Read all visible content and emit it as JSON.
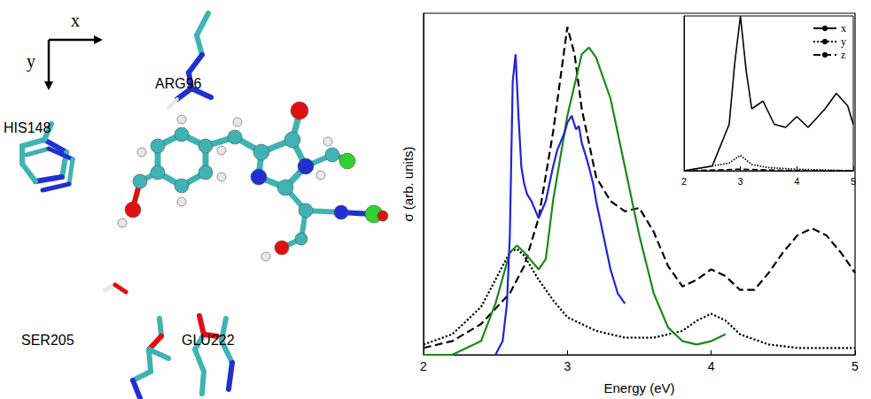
{
  "chart_data": [
    {
      "type": "line",
      "xlabel": "Energy (eV)",
      "ylabel": "σ (arb. units)",
      "xlim": [
        2,
        5
      ],
      "xticks": [
        2,
        3,
        4,
        5
      ],
      "ylim": [
        0,
        100
      ],
      "tick_labels": "x",
      "grid": false,
      "series": [
        {
          "color": "#000000",
          "line_style": "dashed",
          "x": [
            2,
            2.2,
            2.4,
            2.6,
            2.7,
            2.8,
            2.9,
            3.0,
            3.05,
            3.1,
            3.2,
            3.3,
            3.4,
            3.5,
            3.6,
            3.7,
            3.8,
            3.9,
            4.0,
            4.1,
            4.2,
            4.3,
            4.4,
            4.5,
            4.6,
            4.7,
            4.8,
            4.9,
            5.0
          ],
          "values": [
            2,
            4,
            9,
            18,
            26,
            40,
            65,
            96,
            88,
            72,
            52,
            45,
            42,
            43,
            36,
            26,
            20,
            22,
            25,
            23,
            19,
            19,
            24,
            30,
            35,
            37,
            35,
            30,
            24
          ]
        },
        {
          "color": "#000000",
          "line_style": "dotted",
          "x": [
            2,
            2.2,
            2.4,
            2.5,
            2.6,
            2.65,
            2.7,
            2.8,
            2.9,
            3.0,
            3.2,
            3.4,
            3.6,
            3.8,
            3.9,
            4.0,
            4.1,
            4.2,
            4.4,
            4.6,
            5.0
          ],
          "values": [
            3,
            6,
            14,
            22,
            30,
            31,
            29,
            22,
            16,
            11,
            7,
            5,
            5,
            7,
            10,
            12,
            10,
            6,
            3,
            2,
            2
          ]
        },
        {
          "color": "#1a8a1a",
          "line_style": "solid",
          "x": [
            2.0,
            2.2,
            2.4,
            2.5,
            2.6,
            2.65,
            2.7,
            2.8,
            2.85,
            2.9,
            3.0,
            3.1,
            3.15,
            3.2,
            3.3,
            3.4,
            3.5,
            3.6,
            3.7,
            3.8,
            3.9,
            4.0,
            4.1
          ],
          "values": [
            0,
            0,
            4,
            15,
            30,
            32,
            30,
            25,
            28,
            45,
            70,
            88,
            90,
            87,
            75,
            55,
            35,
            18,
            8,
            4,
            3,
            4,
            6
          ]
        },
        {
          "color": "#2222dd",
          "line_style": "solid",
          "x": [
            2.5,
            2.55,
            2.58,
            2.6,
            2.62,
            2.64,
            2.66,
            2.68,
            2.7,
            2.72,
            2.75,
            2.78,
            2.8,
            2.83,
            2.85,
            2.88,
            2.9,
            2.93,
            2.95,
            2.98,
            3.0,
            3.03,
            3.06,
            3.08,
            3.1,
            3.13,
            3.15,
            3.18,
            3.2,
            3.25,
            3.3,
            3.35,
            3.4
          ],
          "values": [
            0,
            4,
            15,
            35,
            80,
            88,
            70,
            55,
            50,
            47,
            45,
            42,
            40,
            43,
            45,
            51,
            55,
            60,
            62,
            65,
            68,
            70,
            66,
            67,
            62,
            58,
            55,
            50,
            45,
            35,
            25,
            18,
            15
          ]
        }
      ]
    },
    {
      "type": "line",
      "xlim": [
        2,
        5
      ],
      "xticks": [
        2,
        3,
        4,
        5
      ],
      "ylim": [
        0,
        100
      ],
      "tick_labels": "x",
      "grid": false,
      "legend": "upper right",
      "series": [
        {
          "name": "x",
          "color": "#000000",
          "line_style": "solid",
          "x": [
            2,
            2.5,
            2.8,
            2.9,
            3.0,
            3.1,
            3.2,
            3.4,
            3.6,
            3.8,
            4.0,
            4.2,
            4.5,
            4.7,
            4.9,
            5.0
          ],
          "values": [
            0,
            3,
            30,
            70,
            100,
            65,
            40,
            45,
            30,
            28,
            35,
            28,
            40,
            50,
            42,
            30
          ]
        },
        {
          "name": "y",
          "color": "#000000",
          "line_style": "dotted",
          "x": [
            2,
            2.8,
            3.0,
            3.2,
            3.5,
            4.0,
            5.0
          ],
          "values": [
            0,
            5,
            10,
            4,
            2,
            1,
            0
          ]
        },
        {
          "name": "z",
          "color": "#000000",
          "line_style": "dashed",
          "x": [
            2,
            3.0,
            4.0,
            5.0
          ],
          "values": [
            0,
            1,
            0,
            0
          ]
        }
      ]
    }
  ],
  "diagram": {
    "axes": [
      "x",
      "y"
    ],
    "residues": [
      "ARG96",
      "HIS148",
      "SER205",
      "GLU222"
    ]
  }
}
